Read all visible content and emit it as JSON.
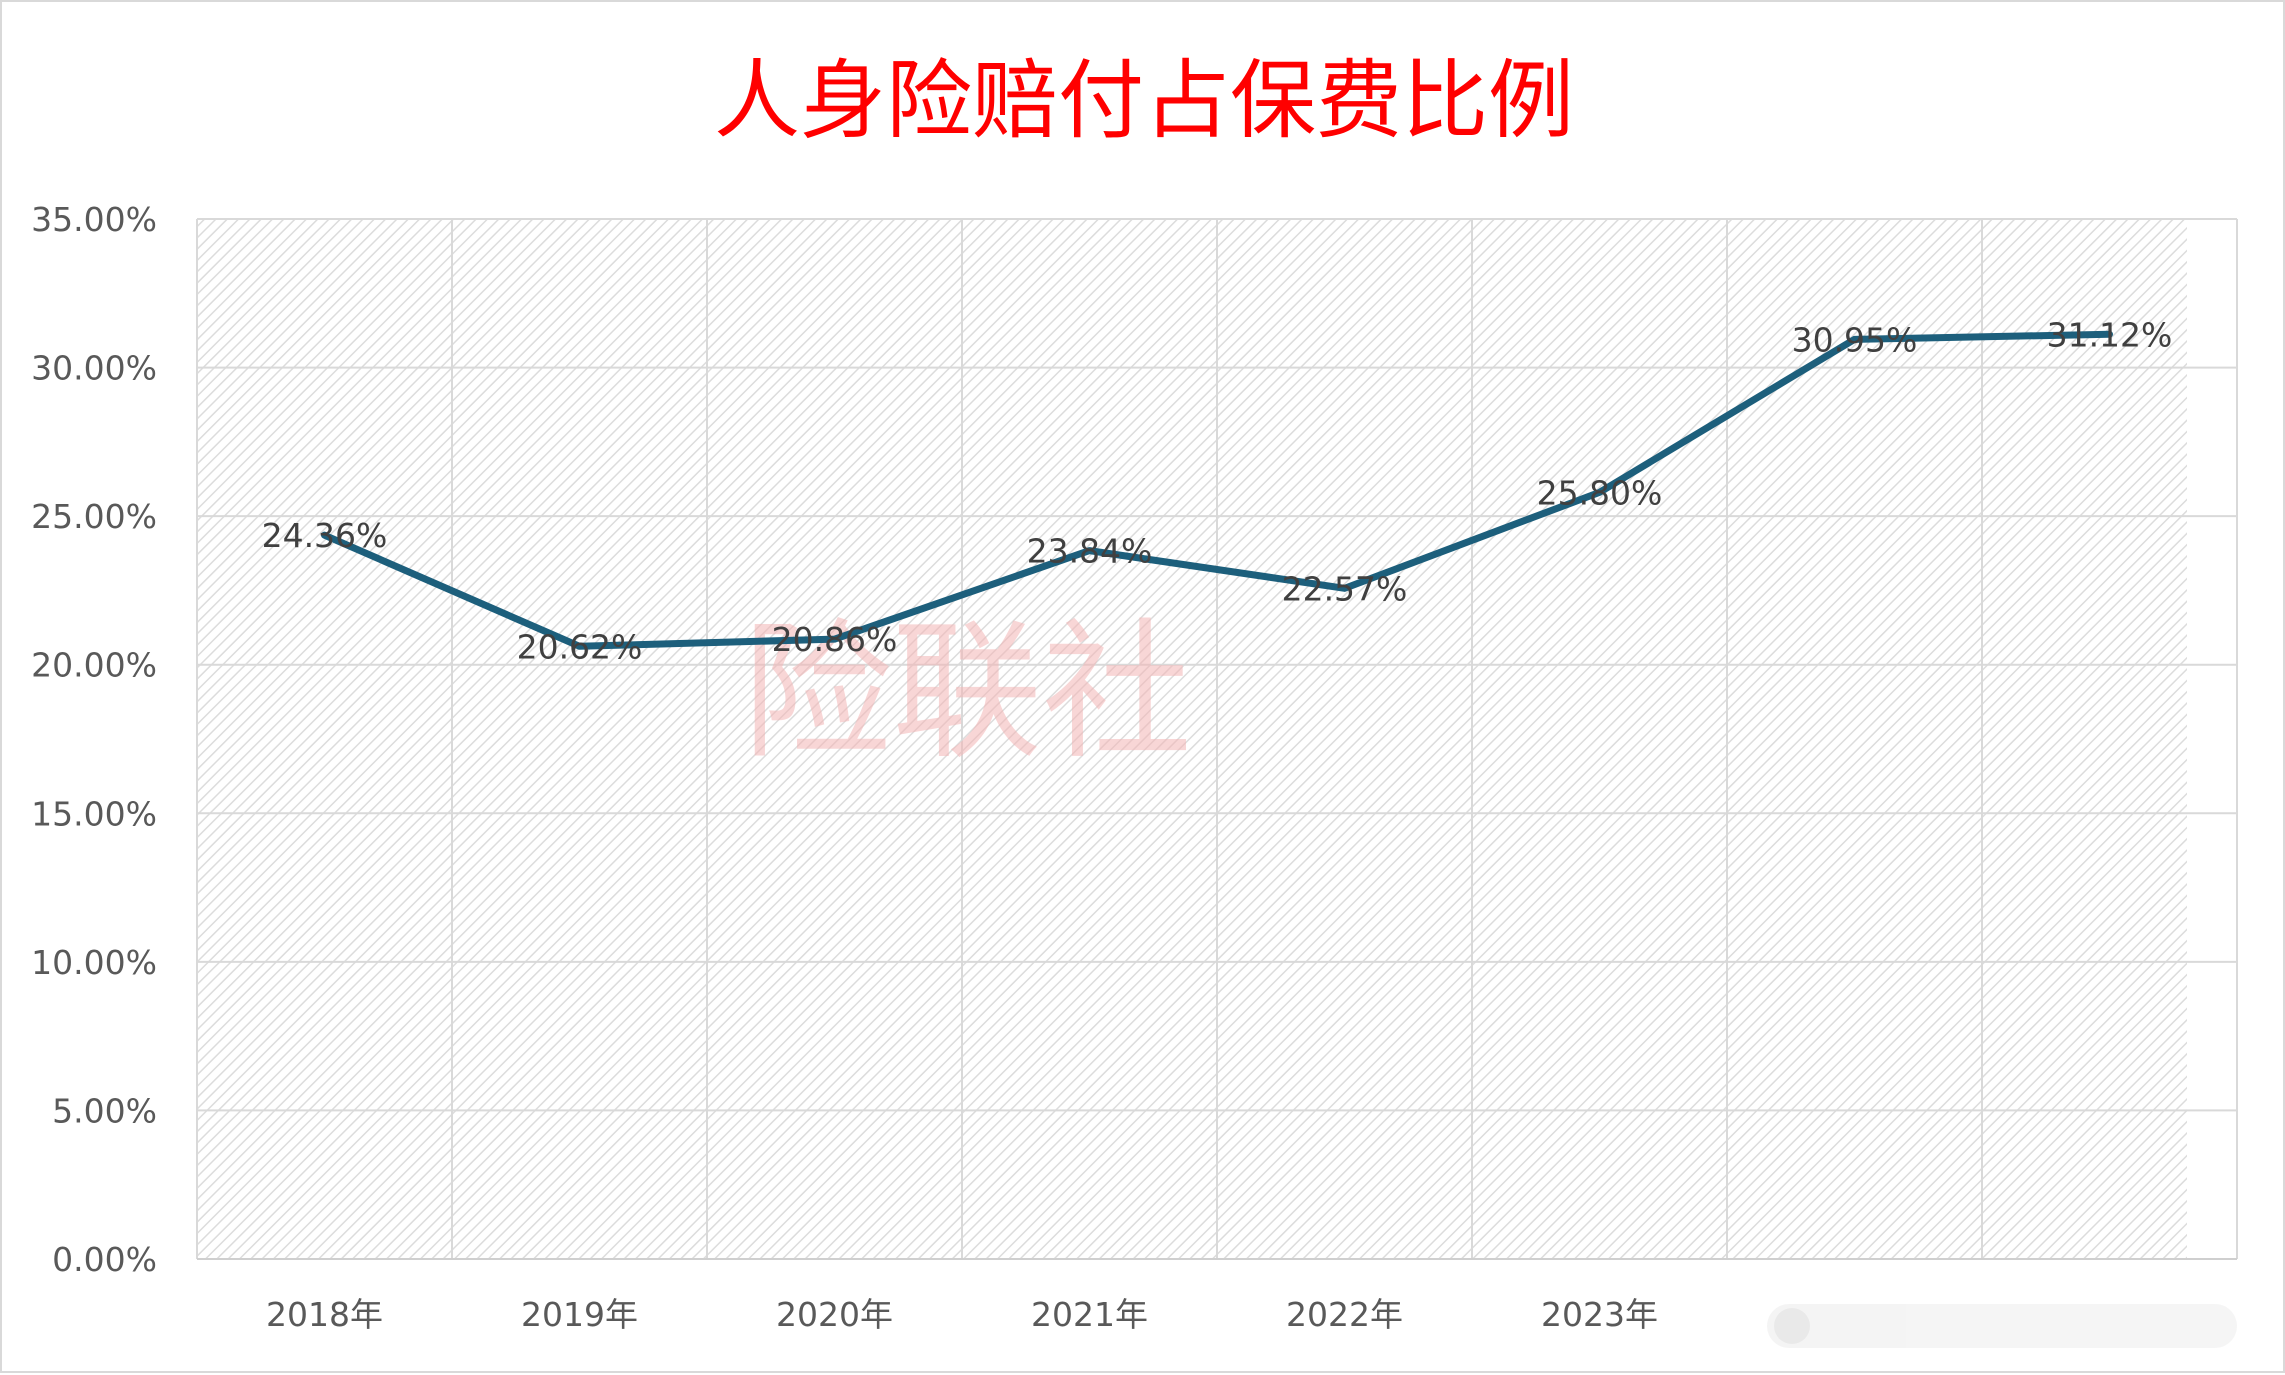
{
  "chart_data": {
    "type": "line",
    "title": "人身险赔付占保费比例",
    "categories": [
      "2018年",
      "2019年",
      "2020年",
      "2021年",
      "2022年",
      "2023年",
      "",
      ""
    ],
    "series": [
      {
        "values": [
          24.36,
          20.62,
          20.86,
          23.84,
          22.57,
          25.8,
          30.95,
          31.12
        ],
        "labels": [
          "24.36%",
          "20.62%",
          "20.86%",
          "23.84%",
          "22.57%",
          "25.80%",
          "30.95%",
          "31.12%"
        ]
      }
    ],
    "ylim": [
      0,
      35
    ],
    "yticks": [
      "0.00%",
      "5.00%",
      "10.00%",
      "15.00%",
      "20.00%",
      "25.00%",
      "30.00%",
      "35.00%"
    ],
    "grid": true,
    "line_color": "#1d5f7c",
    "title_color": "#ff0000"
  },
  "watermark": {
    "text": "险联社"
  }
}
